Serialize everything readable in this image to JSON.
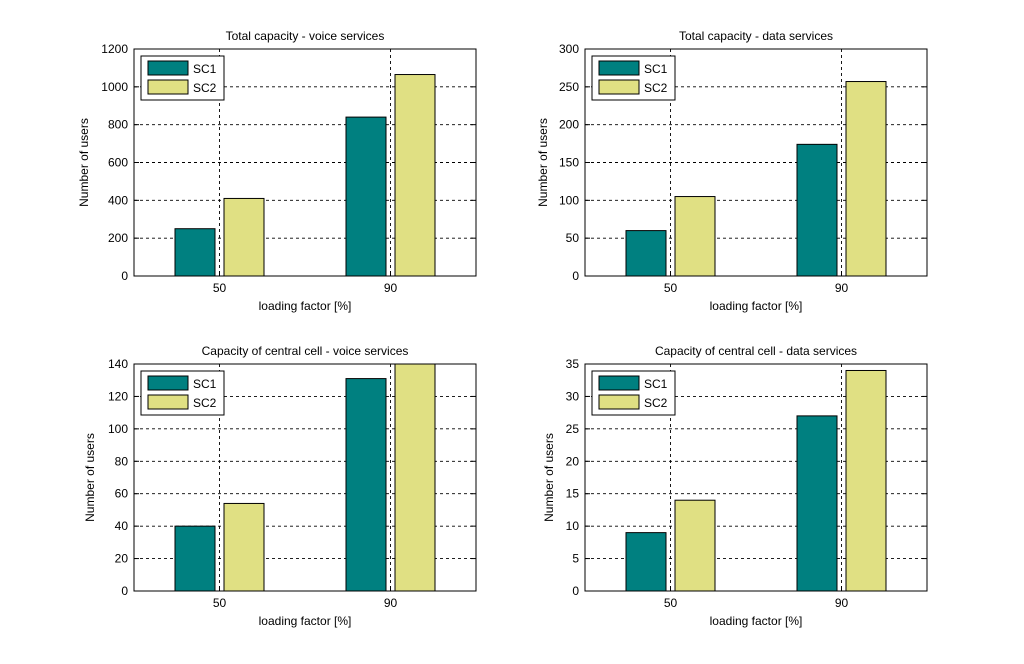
{
  "colors": {
    "SC1": "#008080",
    "SC2": "#e0e083"
  },
  "chart_data": [
    {
      "type": "bar",
      "title": "Total capacity - voice services",
      "xlabel": "loading factor [%]",
      "ylabel": "Number of users",
      "categories": [
        "50",
        "90"
      ],
      "ylim": [
        0,
        1200
      ],
      "yticks": [
        0,
        200,
        400,
        600,
        800,
        1000,
        1200
      ],
      "series": [
        {
          "name": "SC1",
          "values": [
            250,
            840
          ]
        },
        {
          "name": "SC2",
          "values": [
            410,
            1065
          ]
        }
      ],
      "grid": true,
      "legend": "top-left"
    },
    {
      "type": "bar",
      "title": "Total capacity - data services",
      "xlabel": "loading factor [%]",
      "ylabel": "Number of users",
      "categories": [
        "50",
        "90"
      ],
      "ylim": [
        0,
        300
      ],
      "yticks": [
        0,
        50,
        100,
        150,
        200,
        250,
        300
      ],
      "series": [
        {
          "name": "SC1",
          "values": [
            60,
            174
          ]
        },
        {
          "name": "SC2",
          "values": [
            105,
            257
          ]
        }
      ],
      "grid": true,
      "legend": "top-left"
    },
    {
      "type": "bar",
      "title": "Capacity of central cell - voice services",
      "xlabel": "loading factor [%]",
      "ylabel": "Number of users",
      "categories": [
        "50",
        "90"
      ],
      "ylim": [
        0,
        140
      ],
      "yticks": [
        0,
        20,
        40,
        60,
        80,
        100,
        120,
        140
      ],
      "series": [
        {
          "name": "SC1",
          "values": [
            40,
            131
          ]
        },
        {
          "name": "SC2",
          "values": [
            54,
            140
          ]
        }
      ],
      "grid": true,
      "legend": "top-left"
    },
    {
      "type": "bar",
      "title": "Capacity of central cell - data services",
      "xlabel": "loading factor [%]",
      "ylabel": "Number of users",
      "categories": [
        "50",
        "90"
      ],
      "ylim": [
        0,
        35
      ],
      "yticks": [
        0,
        5,
        10,
        15,
        20,
        25,
        30,
        35
      ],
      "series": [
        {
          "name": "SC1",
          "values": [
            9,
            27
          ]
        },
        {
          "name": "SC2",
          "values": [
            14,
            34
          ]
        }
      ],
      "grid": true,
      "legend": "top-left"
    }
  ]
}
